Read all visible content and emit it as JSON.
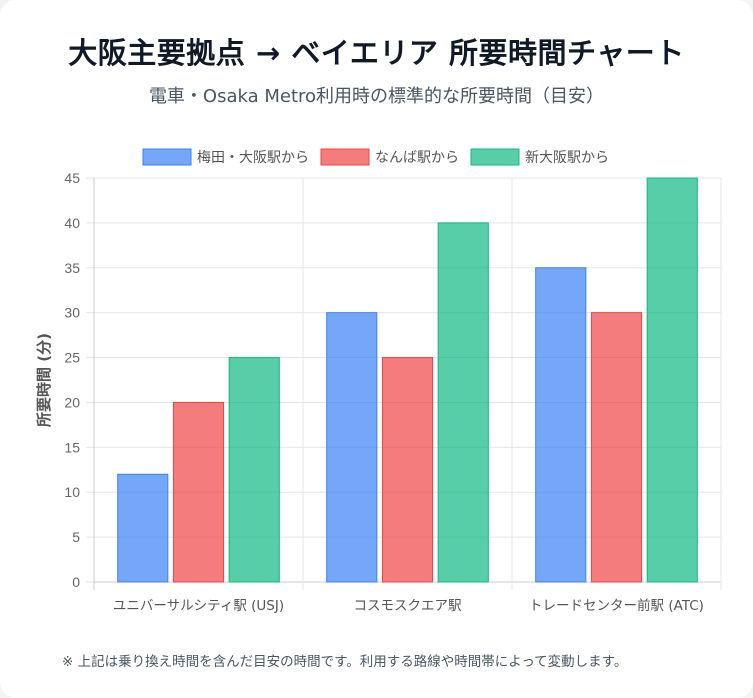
{
  "header": {
    "title": "大阪主要拠点 → ベイエリア 所要時間チャート",
    "subtitle": "電車・Osaka Metro利用時の標準的な所要時間（目安）"
  },
  "footnote": "※ 上記は乗り換え時間を含んだ目安の時間です。利用する路線や時間帯によって変動します。",
  "chart_data": {
    "type": "bar",
    "categories": [
      "ユニバーサルシティ駅 (USJ)",
      "コスモスクエア駅",
      "トレードセンター前駅 (ATC)"
    ],
    "series": [
      {
        "name": "梅田・大阪駅から",
        "values": [
          12,
          30,
          35
        ],
        "color": "#3b82f6"
      },
      {
        "name": "なんば駅から",
        "values": [
          20,
          25,
          30
        ],
        "color": "#ef4444"
      },
      {
        "name": "新大阪駅から",
        "values": [
          25,
          40,
          45
        ],
        "color": "#10b981"
      }
    ],
    "ylabel": "所要時間 (分)",
    "ylim": [
      0,
      45
    ],
    "yticks": [
      0,
      5,
      10,
      15,
      20,
      25,
      30,
      35,
      40,
      45
    ],
    "legend": "top-center",
    "grid": true
  }
}
